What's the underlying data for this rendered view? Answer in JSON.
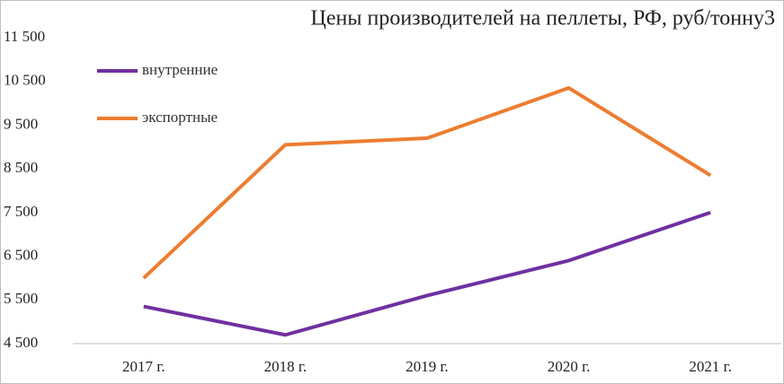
{
  "chart_data": {
    "type": "line",
    "title": "Цены производителей на пеллеты, РФ, руб/тонну3",
    "categories": [
      "2017 г.",
      "2018 г.",
      "2019 г.",
      "2020 г.",
      "2021 г."
    ],
    "series": [
      {
        "name": "внутренние",
        "color": "#7030a0",
        "values": [
          5350,
          4700,
          5600,
          6400,
          7500
        ]
      },
      {
        "name": "экспортные",
        "color": "#ed7d31",
        "values": [
          6000,
          9050,
          9200,
          10350,
          8350
        ]
      }
    ],
    "ylim": [
      4500,
      11500
    ],
    "yticks": [
      {
        "value": 4500,
        "label": "4 500"
      },
      {
        "value": 5500,
        "label": "5 500"
      },
      {
        "value": 6500,
        "label": "6 500"
      },
      {
        "value": 7500,
        "label": "7 500"
      },
      {
        "value": 8500,
        "label": "8 500"
      },
      {
        "value": 9500,
        "label": "9 500"
      },
      {
        "value": 10500,
        "label": "10 500"
      },
      {
        "value": 11500,
        "label": "11 500"
      }
    ],
    "grid": false,
    "legend": "top-left"
  }
}
